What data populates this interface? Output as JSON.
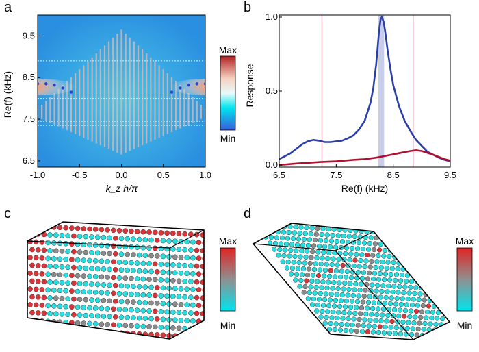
{
  "panels": [
    "a",
    "b",
    "c",
    "d"
  ],
  "chart_data": [
    {
      "id": "a",
      "type": "heatmap",
      "xlabel": "k_z h/π",
      "ylabel": "Re(f) (kHz)",
      "xticks": [
        "-1.0",
        "-0.5",
        "0.0",
        "0.5",
        "1.0"
      ],
      "yticks": [
        "6.5",
        "7.5",
        "8.5",
        "9.5"
      ],
      "xlim": [
        -1.0,
        1.0
      ],
      "ylim": [
        6.35,
        10.0
      ],
      "bands": {
        "x": [
          -1.0,
          -0.9,
          -0.8,
          -0.7,
          -0.6
        ],
        "y": [
          8.35,
          8.35,
          8.32,
          8.25,
          8.15
        ]
      },
      "colorbar": {
        "max": "Max",
        "min": "Min",
        "colors": [
          "#b22222",
          "#ffffff",
          "#00e5ee",
          "#3a5bd9"
        ]
      }
    },
    {
      "id": "b",
      "type": "line",
      "xlabel": "Re(f) (kHz)",
      "ylabel": "Response",
      "xticks": [
        "6.5",
        "7.5",
        "8.5",
        "9.5"
      ],
      "yticks": [
        "0.0",
        "0.5",
        "1.0"
      ],
      "xlim": [
        6.5,
        9.5
      ],
      "ylim": [
        0.0,
        1.0
      ],
      "vlines": [
        7.25,
        8.85
      ],
      "band": [
        8.24,
        8.34
      ],
      "series": [
        {
          "color": "#2a3fa8",
          "x": [
            6.5,
            6.7,
            6.9,
            7.0,
            7.1,
            7.2,
            7.3,
            7.4,
            7.5,
            7.6,
            7.7,
            7.8,
            7.9,
            8.0,
            8.1,
            8.15,
            8.2,
            8.25,
            8.28,
            8.3,
            8.33,
            8.36,
            8.4,
            8.45,
            8.5,
            8.6,
            8.7,
            8.8,
            8.9,
            9.0,
            9.1,
            9.2,
            9.3,
            9.4,
            9.5
          ],
          "y": [
            0.04,
            0.08,
            0.14,
            0.16,
            0.17,
            0.165,
            0.155,
            0.155,
            0.16,
            0.165,
            0.18,
            0.2,
            0.24,
            0.3,
            0.42,
            0.52,
            0.68,
            0.9,
            0.99,
            1.0,
            0.97,
            0.9,
            0.78,
            0.65,
            0.54,
            0.4,
            0.3,
            0.23,
            0.17,
            0.13,
            0.09,
            0.07,
            0.05,
            0.035,
            0.025
          ]
        },
        {
          "color": "#b01030",
          "x": [
            6.5,
            6.8,
            7.0,
            7.2,
            7.5,
            7.8,
            8.0,
            8.2,
            8.4,
            8.6,
            8.8,
            8.9,
            9.0,
            9.2,
            9.4,
            9.5
          ],
          "y": [
            0.0,
            0.01,
            0.015,
            0.02,
            0.025,
            0.035,
            0.04,
            0.05,
            0.065,
            0.08,
            0.095,
            0.1,
            0.095,
            0.07,
            0.04,
            0.03
          ]
        }
      ]
    },
    {
      "id": "c",
      "type": "other",
      "colorbar": {
        "max": "Max",
        "min": "Min",
        "colors": [
          "#e02424",
          "#909090",
          "#00e5ee"
        ]
      }
    },
    {
      "id": "d",
      "type": "other",
      "colorbar": {
        "max": "Max",
        "min": "Min",
        "colors": [
          "#e02424",
          "#909090",
          "#00e5ee"
        ]
      }
    }
  ]
}
